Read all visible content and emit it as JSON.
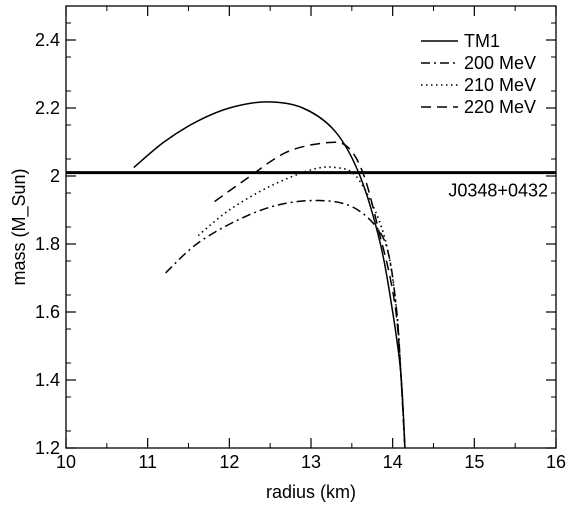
{
  "chart_data": {
    "type": "line",
    "xlabel": "radius   (km)",
    "ylabel": "mass   (M_Sun)",
    "xlim": [
      10,
      16
    ],
    "ylim": [
      1.2,
      2.5
    ],
    "xticks": [
      10,
      11,
      12,
      13,
      14,
      15,
      16
    ],
    "xtick_labels": [
      "10",
      "11",
      "12",
      "13",
      "14",
      "15",
      "16"
    ],
    "yticks": [
      1.2,
      1.4,
      1.6,
      1.8,
      2.0,
      2.2,
      2.4
    ],
    "ytick_labels": [
      "1.2",
      "1.4",
      "1.6",
      "1.8",
      "2",
      "2.2",
      "2.4"
    ],
    "grid": false,
    "legend_position": "top-right",
    "series": [
      {
        "name": "TM1",
        "style": "solid",
        "points": [
          [
            10.83,
            2.025
          ],
          [
            11.2,
            2.1
          ],
          [
            11.6,
            2.16
          ],
          [
            12.0,
            2.2
          ],
          [
            12.45,
            2.218
          ],
          [
            12.9,
            2.2
          ],
          [
            13.3,
            2.13
          ],
          [
            13.6,
            2.0
          ],
          [
            13.85,
            1.8
          ],
          [
            14.0,
            1.6
          ],
          [
            14.1,
            1.42
          ],
          [
            14.15,
            1.2
          ]
        ]
      },
      {
        "name": "200 MeV",
        "style": "dashdot",
        "points": [
          [
            11.22,
            1.715
          ],
          [
            11.6,
            1.8
          ],
          [
            12.1,
            1.87
          ],
          [
            12.6,
            1.915
          ],
          [
            13.1,
            1.928
          ],
          [
            13.5,
            1.91
          ],
          [
            13.8,
            1.85
          ],
          [
            13.95,
            1.77
          ],
          [
            14.05,
            1.6
          ],
          [
            14.1,
            1.42
          ],
          [
            14.15,
            1.2
          ]
        ]
      },
      {
        "name": "210 MeV",
        "style": "dotted",
        "points": [
          [
            11.62,
            1.825
          ],
          [
            12.0,
            1.9
          ],
          [
            12.5,
            1.97
          ],
          [
            13.0,
            2.018
          ],
          [
            13.3,
            2.025
          ],
          [
            13.55,
            2.0
          ],
          [
            13.8,
            1.89
          ],
          [
            13.95,
            1.77
          ],
          [
            14.05,
            1.6
          ],
          [
            14.1,
            1.42
          ],
          [
            14.15,
            1.2
          ]
        ]
      },
      {
        "name": "220 MeV",
        "style": "dashed",
        "points": [
          [
            11.82,
            1.925
          ],
          [
            12.2,
            1.99
          ],
          [
            12.7,
            2.07
          ],
          [
            13.2,
            2.098
          ],
          [
            13.45,
            2.085
          ],
          [
            13.65,
            2.0
          ],
          [
            13.85,
            1.82
          ],
          [
            13.97,
            1.7
          ],
          [
            14.05,
            1.58
          ],
          [
            14.1,
            1.42
          ],
          [
            14.15,
            1.2
          ]
        ]
      }
    ],
    "reference_line": {
      "y": 2.01,
      "label": "J0348+0432"
    }
  }
}
